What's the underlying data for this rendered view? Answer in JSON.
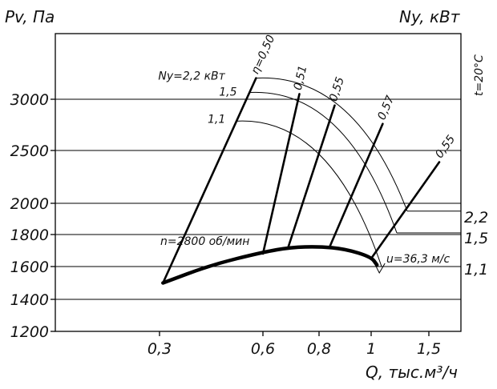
{
  "chart_data": {
    "type": "line",
    "title": "",
    "ylabel_left": "Pv, Па",
    "ylabel_right": "Ny, кВт",
    "xlabel": "Q, тыс.м³/ч",
    "temperature_label": "t=20°C",
    "y_ticks": [
      1200,
      1400,
      1600,
      1800,
      2000,
      2500,
      3000
    ],
    "x_ticks": [
      "0,3",
      "0,6",
      "0,8",
      "1",
      "1,5"
    ],
    "x_tick_values": [
      0.3,
      0.6,
      0.8,
      1.0,
      1.5
    ],
    "grid": "horizontal at y ticks",
    "speed_label": "n=2800 об/мин",
    "outlet_velocity_label": "u=36,3 м/с",
    "pressure_curve": {
      "name": "n=2800 об/мин",
      "points": [
        {
          "q": 0.31,
          "pv": 1500
        },
        {
          "q": 0.45,
          "pv": 1610
        },
        {
          "q": 0.6,
          "pv": 1690
        },
        {
          "q": 0.7,
          "pv": 1720
        },
        {
          "q": 0.8,
          "pv": 1725
        },
        {
          "q": 0.9,
          "pv": 1710
        },
        {
          "q": 1.0,
          "pv": 1660
        },
        {
          "q": 1.05,
          "pv": 1610
        }
      ]
    },
    "efficiency_lines": [
      {
        "label": "η=0,50",
        "q0": 0.31,
        "pv0": 1500,
        "q1": 0.58,
        "pv1": 3200
      },
      {
        "label": "0,51",
        "q0": 0.6,
        "pv0": 1680,
        "q1": 0.73,
        "pv1": 3050
      },
      {
        "label": "0,55",
        "q0": 0.69,
        "pv0": 1720,
        "q1": 0.86,
        "pv1": 2940
      },
      {
        "label": "0,57",
        "q0": 0.84,
        "pv0": 1720,
        "q1": 1.1,
        "pv1": 2760
      },
      {
        "label": "0,55",
        "q0": 1.0,
        "pv0": 1650,
        "q1": 1.6,
        "pv1": 2390
      }
    ],
    "power_curves": [
      {
        "label": "Ny=2,2 кВт",
        "right_label": "2,2",
        "pv_right": 1950
      },
      {
        "label": "1,5",
        "right_label": "1,5",
        "pv_right": 1810
      },
      {
        "label": "1,1",
        "right_label": "1,1",
        "pv_right": 1600
      }
    ]
  }
}
